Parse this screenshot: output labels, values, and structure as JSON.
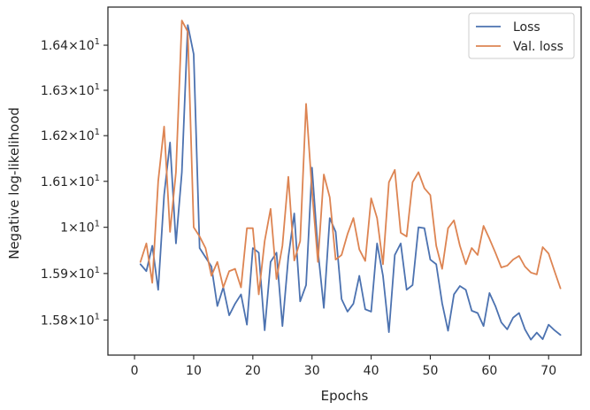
{
  "chart_data": {
    "type": "line",
    "title": "",
    "xlabel": "Epochs",
    "ylabel": "Negative log-likelihood",
    "xlim": [
      -4.5,
      75.5
    ],
    "ylim": [
      15.725,
      16.485
    ],
    "xticks": [
      0,
      10,
      20,
      30,
      40,
      50,
      60,
      70
    ],
    "xtick_labels": [
      "0",
      "10",
      "20",
      "30",
      "40",
      "50",
      "60",
      "70"
    ],
    "yticks": [
      15.8,
      15.9,
      16.0,
      16.1,
      16.2,
      16.3,
      16.4
    ],
    "ytick_labels": [
      {
        "mantissa": "1.58",
        "base": "10",
        "exp": "1"
      },
      {
        "mantissa": "1.59",
        "base": "10",
        "exp": "1"
      },
      {
        "mantissa": "1",
        "base": "10",
        "exp": "1"
      },
      {
        "mantissa": "1.61",
        "base": "10",
        "exp": "1"
      },
      {
        "mantissa": "1.62",
        "base": "10",
        "exp": "1"
      },
      {
        "mantissa": "1.63",
        "base": "10",
        "exp": "1"
      },
      {
        "mantissa": "1.64",
        "base": "10",
        "exp": "1"
      }
    ],
    "yscale": "log",
    "grid": false,
    "legend_position": "top-right",
    "x": [
      1,
      2,
      3,
      4,
      5,
      6,
      7,
      8,
      9,
      10,
      11,
      12,
      13,
      14,
      15,
      16,
      17,
      18,
      19,
      20,
      21,
      22,
      23,
      24,
      25,
      26,
      27,
      28,
      29,
      30,
      31,
      32,
      33,
      34,
      35,
      36,
      37,
      38,
      39,
      40,
      41,
      42,
      43,
      44,
      45,
      46,
      47,
      48,
      49,
      50,
      51,
      52,
      53,
      54,
      55,
      56,
      57,
      58,
      59,
      60,
      61,
      62,
      63,
      64,
      65,
      66,
      67,
      68,
      69,
      70,
      71,
      72
    ],
    "series": [
      {
        "name": "Loss",
        "color": "#4c72b0",
        "values": [
          15.92,
          15.905,
          15.96,
          15.865,
          16.07,
          16.185,
          15.965,
          16.12,
          16.445,
          16.38,
          15.955,
          15.935,
          15.915,
          15.83,
          15.87,
          15.81,
          15.835,
          15.855,
          15.79,
          15.955,
          15.945,
          15.778,
          15.925,
          15.945,
          15.787,
          15.935,
          16.03,
          15.84,
          15.875,
          16.13,
          15.95,
          15.826,
          16.02,
          15.99,
          15.845,
          15.818,
          15.835,
          15.895,
          15.823,
          15.818,
          15.965,
          15.895,
          15.774,
          15.94,
          15.965,
          15.865,
          15.875,
          16.0,
          15.998,
          15.93,
          15.92,
          15.836,
          15.777,
          15.855,
          15.873,
          15.865,
          15.82,
          15.815,
          15.787,
          15.858,
          15.83,
          15.795,
          15.78,
          15.805,
          15.815,
          15.78,
          15.758,
          15.773,
          15.759,
          15.79,
          15.778,
          15.768
        ]
      },
      {
        "name": "Val. loss",
        "color": "#dd8452",
        "values": [
          15.925,
          15.965,
          15.88,
          16.1,
          16.22,
          15.99,
          16.12,
          16.455,
          16.43,
          16.0,
          15.98,
          15.955,
          15.895,
          15.925,
          15.87,
          15.905,
          15.91,
          15.87,
          15.998,
          15.998,
          15.855,
          15.97,
          16.04,
          15.888,
          15.96,
          16.11,
          15.928,
          15.97,
          16.27,
          16.08,
          15.925,
          16.115,
          16.065,
          15.93,
          15.94,
          15.985,
          16.02,
          15.952,
          15.927,
          16.063,
          16.02,
          15.92,
          16.098,
          16.125,
          15.988,
          15.98,
          16.098,
          16.12,
          16.085,
          16.07,
          15.96,
          15.91,
          15.998,
          16.015,
          15.96,
          15.92,
          15.955,
          15.94,
          16.003,
          15.975,
          15.945,
          15.913,
          15.917,
          15.93,
          15.938,
          15.915,
          15.902,
          15.898,
          15.957,
          15.943,
          15.905,
          15.868
        ]
      }
    ]
  }
}
